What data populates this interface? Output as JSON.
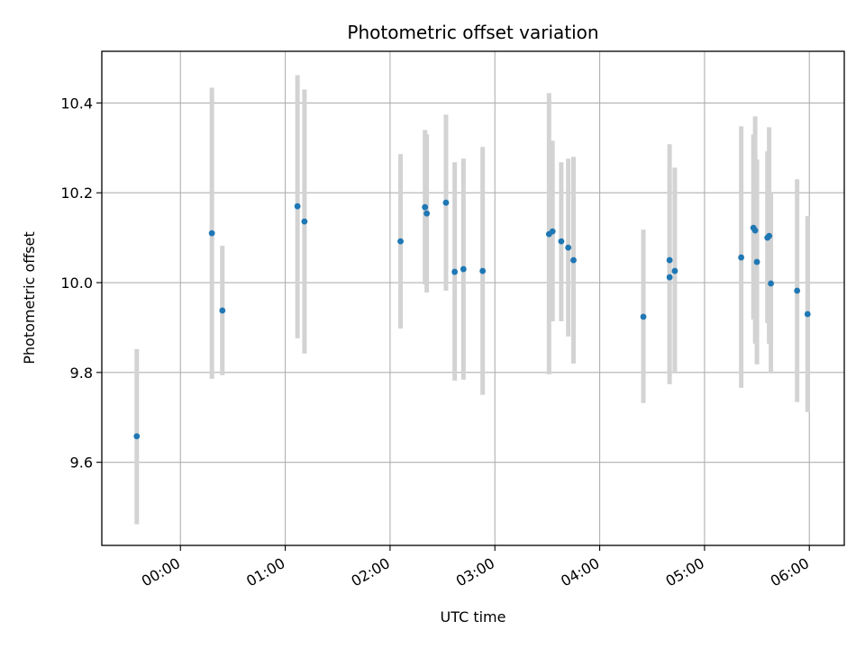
{
  "chart_data": {
    "type": "scatter",
    "title": "Photometric offset variation",
    "xlabel": "UTC time",
    "ylabel": "Photometric offset",
    "grid": true,
    "legend": "none",
    "xlim": [
      "23:15",
      "06:20"
    ],
    "ylim": [
      9.415,
      10.515
    ],
    "x_ticks": [
      "00:00",
      "01:00",
      "02:00",
      "03:00",
      "04:00",
      "05:00",
      "06:00"
    ],
    "y_ticks": [
      "9.6",
      "9.8",
      "10.0",
      "10.2",
      "10.4"
    ],
    "colors": {
      "point": "#1f77b4",
      "errorbar": "#d3d3d3",
      "grid": "#b0b0b0"
    },
    "series": [
      {
        "points": [
          {
            "x": "23:35",
            "y": 9.658,
            "ylow": 9.462,
            "yhigh": 9.852
          },
          {
            "x": "00:18",
            "y": 10.11,
            "ylow": 9.786,
            "yhigh": 10.434
          },
          {
            "x": "00:24",
            "y": 9.938,
            "ylow": 9.794,
            "yhigh": 10.082
          },
          {
            "x": "01:07",
            "y": 10.17,
            "ylow": 9.876,
            "yhigh": 10.462
          },
          {
            "x": "01:11",
            "y": 10.136,
            "ylow": 9.842,
            "yhigh": 10.43
          },
          {
            "x": "02:06",
            "y": 10.092,
            "ylow": 9.898,
            "yhigh": 10.286
          },
          {
            "x": "02:20",
            "y": 10.168,
            "ylow": 9.996,
            "yhigh": 10.34
          },
          {
            "x": "02:21",
            "y": 10.154,
            "ylow": 9.978,
            "yhigh": 10.33
          },
          {
            "x": "02:32",
            "y": 10.178,
            "ylow": 9.982,
            "yhigh": 10.374
          },
          {
            "x": "02:37",
            "y": 10.024,
            "ylow": 9.782,
            "yhigh": 10.268
          },
          {
            "x": "02:42",
            "y": 10.03,
            "ylow": 9.784,
            "yhigh": 10.276
          },
          {
            "x": "02:53",
            "y": 10.026,
            "ylow": 9.75,
            "yhigh": 10.302
          },
          {
            "x": "03:31",
            "y": 10.108,
            "ylow": 9.796,
            "yhigh": 10.422
          },
          {
            "x": "03:33",
            "y": 10.114,
            "ylow": 9.914,
            "yhigh": 10.316
          },
          {
            "x": "03:38",
            "y": 10.092,
            "ylow": 9.914,
            "yhigh": 10.268
          },
          {
            "x": "03:42",
            "y": 10.078,
            "ylow": 9.88,
            "yhigh": 10.276
          },
          {
            "x": "03:45",
            "y": 10.05,
            "ylow": 9.82,
            "yhigh": 10.28
          },
          {
            "x": "04:25",
            "y": 9.924,
            "ylow": 9.732,
            "yhigh": 10.118
          },
          {
            "x": "04:40",
            "y": 10.05,
            "ylow": 9.792,
            "yhigh": 10.308
          },
          {
            "x": "04:40",
            "y": 10.012,
            "ylow": 9.774,
            "yhigh": 10.25
          },
          {
            "x": "04:43",
            "y": 10.026,
            "ylow": 9.798,
            "yhigh": 10.256
          },
          {
            "x": "05:21",
            "y": 10.056,
            "ylow": 9.766,
            "yhigh": 10.348
          },
          {
            "x": "05:28",
            "y": 10.122,
            "ylow": 9.918,
            "yhigh": 10.33
          },
          {
            "x": "05:29",
            "y": 10.116,
            "ylow": 9.864,
            "yhigh": 10.37
          },
          {
            "x": "05:30",
            "y": 10.046,
            "ylow": 9.818,
            "yhigh": 10.274
          },
          {
            "x": "05:36",
            "y": 10.1,
            "ylow": 9.91,
            "yhigh": 10.292
          },
          {
            "x": "05:37",
            "y": 10.104,
            "ylow": 9.864,
            "yhigh": 10.346
          },
          {
            "x": "05:38",
            "y": 9.998,
            "ylow": 9.798,
            "yhigh": 10.2
          },
          {
            "x": "05:53",
            "y": 9.982,
            "ylow": 9.734,
            "yhigh": 10.23
          },
          {
            "x": "05:59",
            "y": 9.93,
            "ylow": 9.712,
            "yhigh": 10.148
          }
        ]
      }
    ]
  }
}
